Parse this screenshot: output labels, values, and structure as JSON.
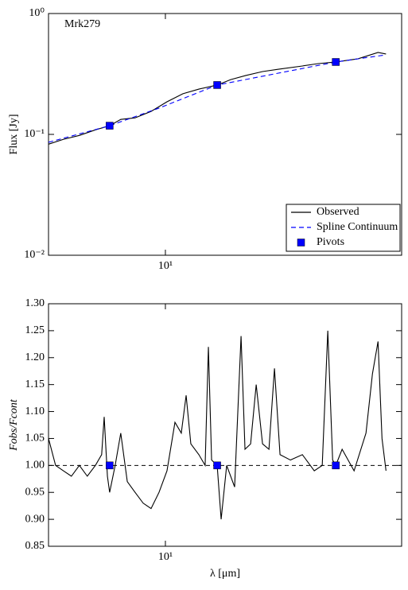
{
  "chart_data": [
    {
      "type": "line",
      "annotation": "Mrk279",
      "ylabel": "Flux [Jy]",
      "xscale": "log",
      "yscale": "log",
      "xlim": [
        5.2,
        37.5
      ],
      "ylim": [
        0.01,
        1
      ],
      "xticks": [
        {
          "value": 10,
          "label": "10¹"
        }
      ],
      "yticks": [
        {
          "value": 0.01,
          "label": "10⁻²"
        },
        {
          "value": 0.1,
          "label": "10⁻¹"
        },
        {
          "value": 1,
          "label": "10⁰"
        }
      ],
      "legend": "lower right",
      "series": [
        {
          "name": "Observed",
          "color": "#000000",
          "style": "solid",
          "x": [
            5.2,
            5.65,
            6.18,
            6.76,
            7.32,
            7.79,
            8.44,
            9.23,
            10.09,
            11.03,
            12.06,
            13.36,
            14.41,
            15.68,
            17.22,
            18.83,
            21.52,
            23.51,
            25.94,
            29.38,
            32.86,
            34.36
          ],
          "values": [
            0.083,
            0.091,
            0.098,
            0.109,
            0.118,
            0.133,
            0.137,
            0.155,
            0.186,
            0.217,
            0.237,
            0.256,
            0.284,
            0.307,
            0.331,
            0.346,
            0.368,
            0.385,
            0.397,
            0.422,
            0.476,
            0.462
          ]
        },
        {
          "name": "Spline Continuum",
          "color": "#0000ff",
          "style": "dashed",
          "x": [
            5.2,
            7.32,
            9.65,
            13.36,
            25.94,
            34.36
          ],
          "values": [
            0.086,
            0.118,
            0.165,
            0.256,
            0.397,
            0.455
          ]
        },
        {
          "name": "Pivots",
          "color": "#0000ff",
          "style": "marker",
          "x": [
            7.32,
            13.36,
            25.94
          ],
          "values": [
            0.118,
            0.256,
            0.397
          ]
        }
      ]
    },
    {
      "type": "line",
      "xlabel": "λ [μm]",
      "ylabel": "Fobs/Fcont",
      "xscale": "log",
      "xlim": [
        5.2,
        37.5
      ],
      "ylim": [
        0.85,
        1.3
      ],
      "xticks": [
        {
          "value": 10,
          "label": "10¹"
        }
      ],
      "yticks": [
        0.85,
        {
          "value": 0.9,
          "label": "0.90"
        },
        0.95,
        {
          "value": 1,
          "label": "1.00"
        },
        1.05,
        {
          "value": 1.1,
          "label": "1.10"
        },
        1.15,
        {
          "value": 1.2,
          "label": "1.20"
        },
        1.25,
        {
          "value": 1.3,
          "label": "1.30"
        }
      ],
      "hlines": [
        1
      ],
      "series": [
        {
          "color": "#000000",
          "style": "solid",
          "x": [
            5.2,
            5.41,
            5.65,
            5.91,
            6.18,
            6.46,
            6.76,
            7.0,
            7.1,
            7.23,
            7.32,
            7.55,
            7.79,
            8.08,
            8.44,
            8.83,
            9.23,
            9.65,
            10.09,
            10.55,
            10.93,
            11.23,
            11.53,
            12.06,
            12.49,
            12.72,
            12.95,
            13.36,
            13.66,
            14.09,
            14.73,
            15.27,
            15.61,
            16.11,
            16.62,
            17.22,
            17.85,
            18.41,
            18.99,
            20.13,
            21.52,
            23.0,
            24.05,
            24.81,
            25.49,
            25.94,
            26.88,
            28.74,
            30.72,
            31.85,
            32.86,
            33.6,
            34.36
          ],
          "values": [
            1.05,
            1.0,
            0.99,
            0.98,
            1.0,
            0.98,
            1.0,
            1.02,
            1.09,
            0.98,
            0.95,
            1.0,
            1.06,
            0.97,
            0.95,
            0.93,
            0.92,
            0.95,
            0.99,
            1.08,
            1.06,
            1.13,
            1.04,
            1.02,
            1.0,
            1.22,
            1.01,
            1.0,
            0.9,
            1.0,
            0.96,
            1.24,
            1.03,
            1.04,
            1.15,
            1.04,
            1.03,
            1.18,
            1.02,
            1.01,
            1.02,
            0.99,
            1.0,
            1.25,
            1.01,
            1.0,
            1.03,
            0.99,
            1.06,
            1.17,
            1.23,
            1.05,
            0.99
          ]
        },
        {
          "color": "#0000ff",
          "style": "marker",
          "x": [
            7.32,
            13.36,
            25.94
          ],
          "values": [
            1,
            1,
            1
          ]
        }
      ]
    }
  ]
}
